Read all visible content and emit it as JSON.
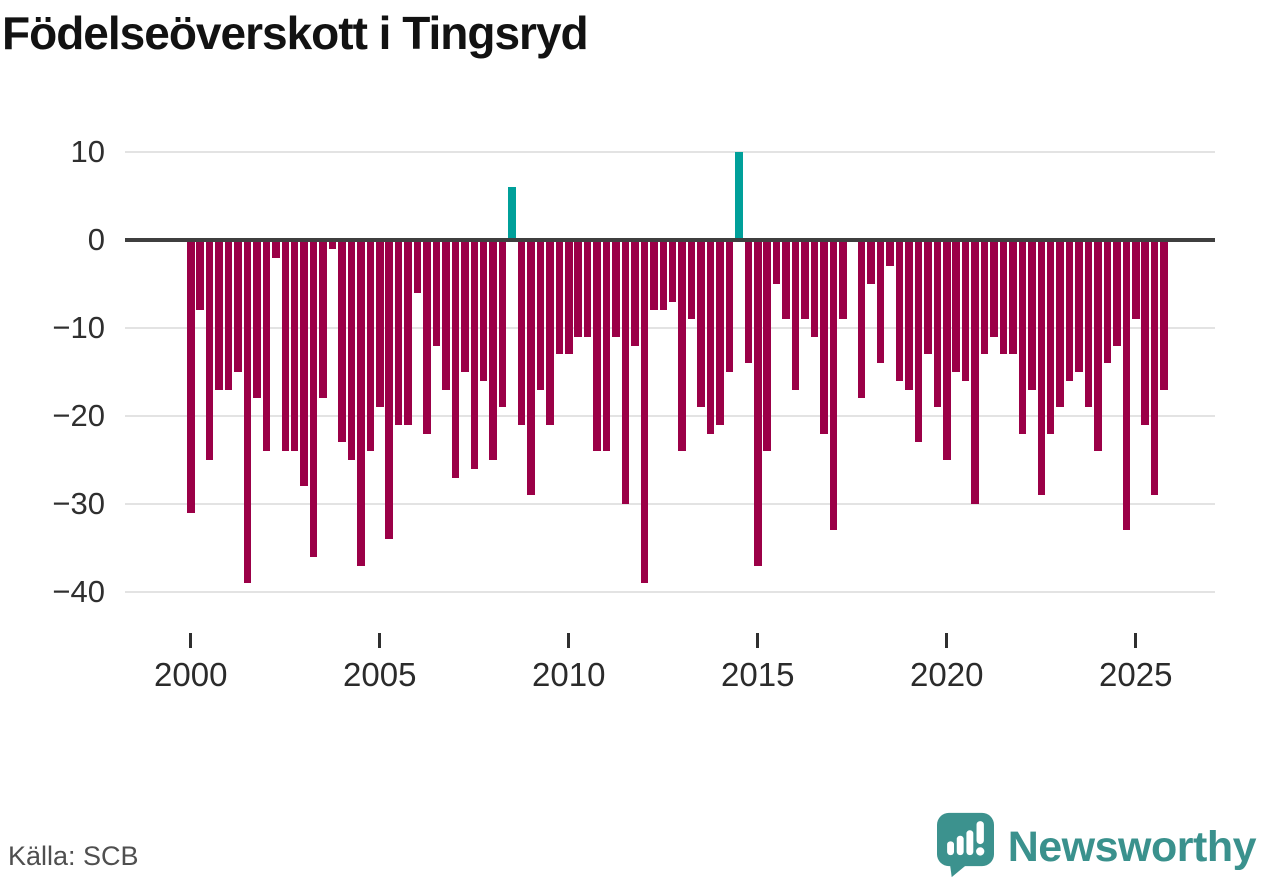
{
  "page": {
    "title": "Födelseöverskott i Tingsryd",
    "source_label": "Källa: SCB"
  },
  "branding": {
    "logo_text": "Newsworthy",
    "logo_icon": "newsworthy-speech-bubble-bar-chart-icon",
    "logo_color": "#3a918d"
  },
  "colors": {
    "negative_bar": "#9b0047",
    "positive_bar": "#00a09a",
    "zero_line": "#3f3f3f",
    "gridline": "#e3e3e3",
    "axis_text": "#2f2f2f"
  },
  "chart_data": {
    "type": "bar",
    "title": "Födelseöverskott i Tingsryd",
    "xlabel": "",
    "ylabel": "",
    "x_unit": "quarter",
    "x_range": [
      "2000Q1",
      "2025Q4"
    ],
    "ylim": [
      -40,
      10
    ],
    "grid": "horizontal",
    "legend": "none",
    "y_ticks": [
      10,
      0,
      -10,
      -20,
      -30,
      -40
    ],
    "y_tick_labels": [
      "10",
      "0",
      "−10",
      "−20",
      "−30",
      "−40"
    ],
    "x_tick_labels": [
      "2000",
      "2005",
      "2010",
      "2015",
      "2020",
      "2025"
    ],
    "x_tick_quarter_indices": [
      0,
      20,
      40,
      60,
      80,
      100
    ],
    "categories": [
      "2000Q1",
      "2000Q2",
      "2000Q3",
      "2000Q4",
      "2001Q1",
      "2001Q2",
      "2001Q3",
      "2001Q4",
      "2002Q1",
      "2002Q2",
      "2002Q3",
      "2002Q4",
      "2003Q1",
      "2003Q2",
      "2003Q3",
      "2003Q4",
      "2004Q1",
      "2004Q2",
      "2004Q3",
      "2004Q4",
      "2005Q1",
      "2005Q2",
      "2005Q3",
      "2005Q4",
      "2006Q1",
      "2006Q2",
      "2006Q3",
      "2006Q4",
      "2007Q1",
      "2007Q2",
      "2007Q3",
      "2007Q4",
      "2008Q1",
      "2008Q2",
      "2008Q3",
      "2008Q4",
      "2009Q1",
      "2009Q2",
      "2009Q3",
      "2009Q4",
      "2010Q1",
      "2010Q2",
      "2010Q3",
      "2010Q4",
      "2011Q1",
      "2011Q2",
      "2011Q3",
      "2011Q4",
      "2012Q1",
      "2012Q2",
      "2012Q3",
      "2012Q4",
      "2013Q1",
      "2013Q2",
      "2013Q3",
      "2013Q4",
      "2014Q1",
      "2014Q2",
      "2014Q3",
      "2014Q4",
      "2015Q1",
      "2015Q2",
      "2015Q3",
      "2015Q4",
      "2016Q1",
      "2016Q2",
      "2016Q3",
      "2016Q4",
      "2017Q1",
      "2017Q2",
      "2017Q3",
      "2017Q4",
      "2018Q1",
      "2018Q2",
      "2018Q3",
      "2018Q4",
      "2019Q1",
      "2019Q2",
      "2019Q3",
      "2019Q4",
      "2020Q1",
      "2020Q2",
      "2020Q3",
      "2020Q4",
      "2021Q1",
      "2021Q2",
      "2021Q3",
      "2021Q4",
      "2022Q1",
      "2022Q2",
      "2022Q3",
      "2022Q4",
      "2023Q1",
      "2023Q2",
      "2023Q3",
      "2023Q4",
      "2024Q1",
      "2024Q2",
      "2024Q3",
      "2024Q4",
      "2025Q1",
      "2025Q2",
      "2025Q3",
      "2025Q4"
    ],
    "values": [
      -31,
      -8,
      -25,
      -17,
      -17,
      -15,
      -39,
      -18,
      -24,
      -2,
      -24,
      -24,
      -28,
      -36,
      -18,
      -1,
      -23,
      -25,
      -37,
      -24,
      -19,
      -34,
      -21,
      -21,
      -6,
      -22,
      -12,
      -17,
      -27,
      -15,
      -26,
      -16,
      -25,
      -19,
      6,
      -21,
      -29,
      -17,
      -21,
      -13,
      -13,
      -11,
      -11,
      -24,
      -24,
      -11,
      -30,
      -12,
      -39,
      -8,
      -8,
      -7,
      -24,
      -9,
      -19,
      -22,
      -21,
      -15,
      10,
      -14,
      -37,
      -24,
      -5,
      -9,
      -17,
      -9,
      -11,
      -22,
      -33,
      -9,
      0,
      -18,
      -5,
      -14,
      -3,
      -16,
      -17,
      -23,
      -13,
      -19,
      -25,
      -15,
      -16,
      -30,
      -13,
      -11,
      -13,
      -13,
      -22,
      -17,
      -29,
      -22,
      -19,
      -16,
      -15,
      -19,
      -24,
      -14,
      -12,
      -33,
      -9,
      -21,
      -29,
      -17
    ]
  }
}
